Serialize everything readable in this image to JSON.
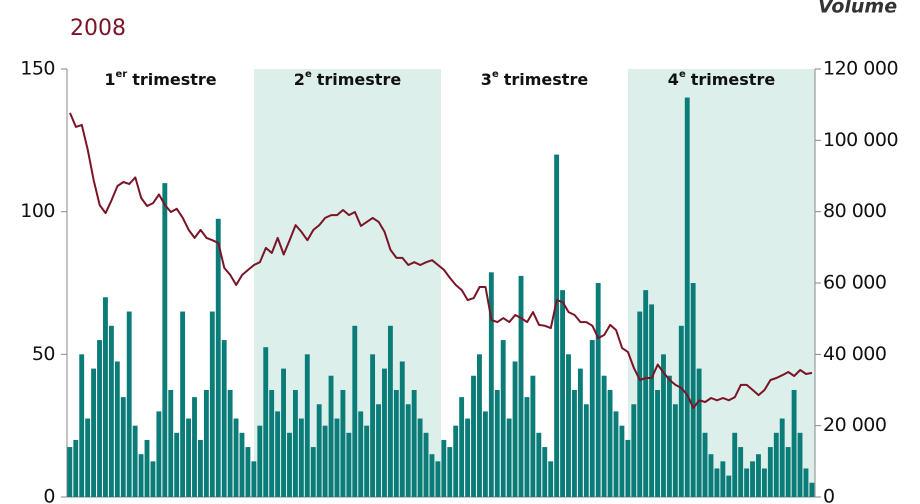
{
  "chart_data": {
    "type": "bar+line",
    "title": "2008",
    "y2_label": "Volume",
    "quarters": [
      {
        "number": "1",
        "suffix": "er",
        "label": "trimestre",
        "shaded": false
      },
      {
        "number": "2",
        "suffix": "e",
        "label": "trimestre",
        "shaded": true
      },
      {
        "number": "3",
        "suffix": "e",
        "label": "trimestre",
        "shaded": false
      },
      {
        "number": "4",
        "suffix": "e",
        "label": "trimestre",
        "shaded": true
      }
    ],
    "shade_color": "#dcefea",
    "ylim": [
      0,
      150
    ],
    "yticks": [
      0,
      50,
      100,
      150
    ],
    "y2lim": [
      0,
      120000
    ],
    "y2ticks": [
      0,
      {
        "value": 20000,
        "label": "20 000"
      },
      {
        "value": 40000,
        "label": "40 000"
      },
      {
        "value": 60000,
        "label": "60 000"
      },
      {
        "value": 80000,
        "label": "80 000"
      },
      {
        "value": 100000,
        "label": "100 000"
      },
      {
        "value": 120000,
        "label": "120 000"
      }
    ],
    "series": [
      {
        "type": "bar",
        "axis": "y2",
        "color": "#0b7c78",
        "values": [
          14000,
          16000,
          40000,
          22000,
          36000,
          44000,
          56000,
          48000,
          38000,
          28000,
          52000,
          20000,
          12000,
          16000,
          10000,
          24000,
          88000,
          30000,
          18000,
          52000,
          22000,
          28000,
          16000,
          30000,
          52000,
          78000,
          44000,
          30000,
          22000,
          18000,
          14000,
          10000,
          20000,
          42000,
          30000,
          24000,
          36000,
          18000,
          30000,
          22000,
          40000,
          14000,
          26000,
          20000,
          34000,
          22000,
          30000,
          18000,
          48000,
          24000,
          20000,
          40000,
          26000,
          36000,
          48000,
          30000,
          38000,
          26000,
          30000,
          22000,
          18000,
          12000,
          10000,
          16000,
          14000,
          20000,
          28000,
          22000,
          34000,
          40000,
          24000,
          63000,
          30000,
          44000,
          22000,
          38000,
          62000,
          28000,
          34000,
          18000,
          14000,
          10000,
          96000,
          58000,
          40000,
          30000,
          36000,
          26000,
          44000,
          60000,
          34000,
          30000,
          24000,
          20000,
          16000,
          26000,
          52000,
          58000,
          54000,
          30000,
          40000,
          34000,
          26000,
          48000,
          112000,
          60000,
          36000,
          18000,
          12000,
          8000,
          10000,
          6000,
          18000,
          14000,
          8000,
          10000,
          12000,
          8000,
          14000,
          18000,
          22000,
          14000,
          30000,
          18000,
          8000,
          4000
        ]
      },
      {
        "type": "line",
        "axis": "y",
        "color": "#7a1427",
        "values": [
          134.6,
          129.7,
          130.4,
          121.6,
          111,
          102.3,
          99.5,
          104,
          109,
          110.4,
          109.7,
          112,
          104.8,
          102,
          103,
          106,
          102.3,
          99.9,
          101,
          97.8,
          93.6,
          90.8,
          93.6,
          90.8,
          90,
          89,
          80.3,
          77.8,
          74.3,
          77.8,
          79.6,
          81.3,
          82.3,
          87.3,
          85.5,
          90.8,
          85,
          90,
          95.3,
          92.9,
          90,
          93.6,
          95.3,
          97.8,
          98.8,
          98.8,
          100.6,
          98.8,
          99.9,
          95,
          96.4,
          97.8,
          96.4,
          92.9,
          86.6,
          83.8,
          83.8,
          81.3,
          82.3,
          81.3,
          82.3,
          83,
          81.3,
          79.6,
          76.8,
          74.3,
          72.5,
          69,
          69.7,
          73.6,
          73.6,
          62,
          61.3,
          62.7,
          61.3,
          63.8,
          62.7,
          61.3,
          64.8,
          60.3,
          60,
          59.2,
          69,
          68.3,
          64.8,
          63.8,
          61.3,
          61.3,
          60,
          55.7,
          56.8,
          60.3,
          58.5,
          52.2,
          50.8,
          45.2,
          41,
          41.7,
          41.7,
          46.4,
          43.6,
          41,
          39.3,
          38.2,
          35.7,
          31.2,
          33.9,
          33.3,
          34.7,
          33.9,
          34.7,
          33.9,
          35,
          39.3,
          39.3,
          37.5,
          35.7,
          37.5,
          41,
          41.7,
          42.7,
          43.8,
          42.4,
          44.5,
          43.1,
          43.5
        ]
      }
    ]
  }
}
